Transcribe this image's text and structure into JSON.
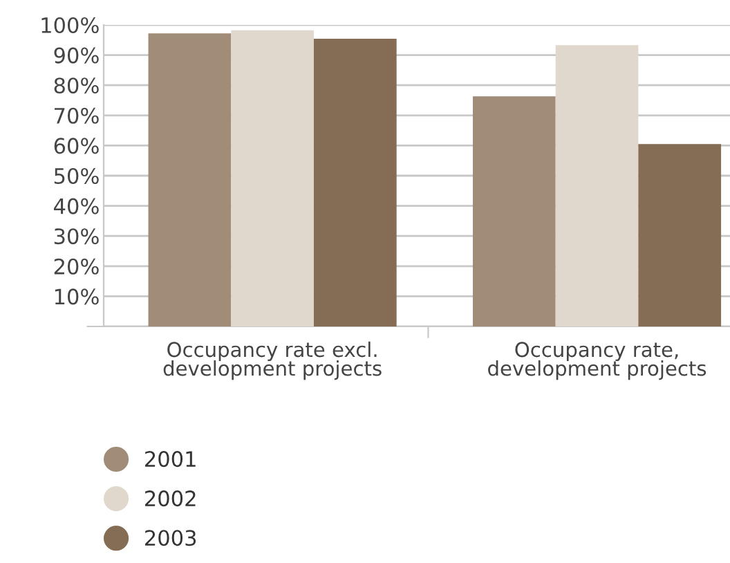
{
  "chart_data": {
    "type": "bar",
    "categories": [
      "Occupancy rate excl.\ndevelopment projects",
      "Occupancy rate,\ndevelopment projects"
    ],
    "series": [
      {
        "name": "2001",
        "color": "#a08c77",
        "values": [
          97.2,
          76.3
        ]
      },
      {
        "name": "2002",
        "color": "#e0d7cd",
        "values": [
          98.2,
          93.3
        ]
      },
      {
        "name": "2003",
        "color": "#846d54",
        "values": [
          95.4,
          60.5
        ]
      }
    ],
    "ylim": [
      0,
      100
    ],
    "yticks": [
      {
        "value": 0,
        "label": null
      },
      {
        "value": 10,
        "label": "10%"
      },
      {
        "value": 20,
        "label": "20%"
      },
      {
        "value": 30,
        "label": "30%"
      },
      {
        "value": 40,
        "label": "40%"
      },
      {
        "value": 50,
        "label": "50%"
      },
      {
        "value": 60,
        "label": "60%"
      },
      {
        "value": 70,
        "label": "70%"
      },
      {
        "value": 80,
        "label": "80%"
      },
      {
        "value": 90,
        "label": "90%"
      },
      {
        "value": 100,
        "label": "100%"
      }
    ],
    "grid": "y",
    "legend": "bottom left"
  }
}
